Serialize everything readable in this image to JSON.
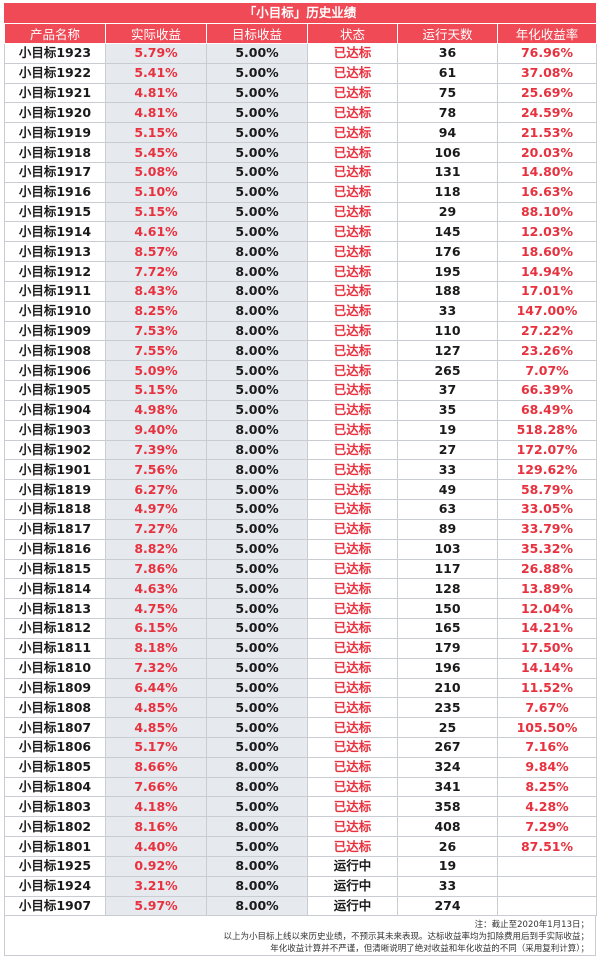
{
  "title": "「小目标」历史业绩",
  "headers": [
    "产品名称",
    "实际收益",
    "目标收益",
    "状态",
    "运行天数",
    "年化收益率"
  ],
  "rows": [
    {
      "name": "小目标1923",
      "actual": "5.79%",
      "target": "5.00%",
      "status": "已达标",
      "days": "36",
      "annual": "76.96%"
    },
    {
      "name": "小目标1922",
      "actual": "5.41%",
      "target": "5.00%",
      "status": "已达标",
      "days": "61",
      "annual": "37.08%"
    },
    {
      "name": "小目标1921",
      "actual": "4.81%",
      "target": "5.00%",
      "status": "已达标",
      "days": "75",
      "annual": "25.69%"
    },
    {
      "name": "小目标1920",
      "actual": "4.81%",
      "target": "5.00%",
      "status": "已达标",
      "days": "78",
      "annual": "24.59%"
    },
    {
      "name": "小目标1919",
      "actual": "5.15%",
      "target": "5.00%",
      "status": "已达标",
      "days": "94",
      "annual": "21.53%"
    },
    {
      "name": "小目标1918",
      "actual": "5.45%",
      "target": "5.00%",
      "status": "已达标",
      "days": "106",
      "annual": "20.03%"
    },
    {
      "name": "小目标1917",
      "actual": "5.08%",
      "target": "5.00%",
      "status": "已达标",
      "days": "131",
      "annual": "14.80%"
    },
    {
      "name": "小目标1916",
      "actual": "5.10%",
      "target": "5.00%",
      "status": "已达标",
      "days": "118",
      "annual": "16.63%"
    },
    {
      "name": "小目标1915",
      "actual": "5.15%",
      "target": "5.00%",
      "status": "已达标",
      "days": "29",
      "annual": "88.10%"
    },
    {
      "name": "小目标1914",
      "actual": "4.61%",
      "target": "5.00%",
      "status": "已达标",
      "days": "145",
      "annual": "12.03%"
    },
    {
      "name": "小目标1913",
      "actual": "8.57%",
      "target": "8.00%",
      "status": "已达标",
      "days": "176",
      "annual": "18.60%"
    },
    {
      "name": "小目标1912",
      "actual": "7.72%",
      "target": "8.00%",
      "status": "已达标",
      "days": "195",
      "annual": "14.94%"
    },
    {
      "name": "小目标1911",
      "actual": "8.43%",
      "target": "8.00%",
      "status": "已达标",
      "days": "188",
      "annual": "17.01%"
    },
    {
      "name": "小目标1910",
      "actual": "8.25%",
      "target": "8.00%",
      "status": "已达标",
      "days": "33",
      "annual": "147.00%"
    },
    {
      "name": "小目标1909",
      "actual": "7.53%",
      "target": "8.00%",
      "status": "已达标",
      "days": "110",
      "annual": "27.22%"
    },
    {
      "name": "小目标1908",
      "actual": "7.55%",
      "target": "8.00%",
      "status": "已达标",
      "days": "127",
      "annual": "23.26%"
    },
    {
      "name": "小目标1906",
      "actual": "5.09%",
      "target": "5.00%",
      "status": "已达标",
      "days": "265",
      "annual": "7.07%"
    },
    {
      "name": "小目标1905",
      "actual": "5.15%",
      "target": "5.00%",
      "status": "已达标",
      "days": "37",
      "annual": "66.39%"
    },
    {
      "name": "小目标1904",
      "actual": "4.98%",
      "target": "5.00%",
      "status": "已达标",
      "days": "35",
      "annual": "68.49%"
    },
    {
      "name": "小目标1903",
      "actual": "9.40%",
      "target": "8.00%",
      "status": "已达标",
      "days": "19",
      "annual": "518.28%"
    },
    {
      "name": "小目标1902",
      "actual": "7.39%",
      "target": "8.00%",
      "status": "已达标",
      "days": "27",
      "annual": "172.07%"
    },
    {
      "name": "小目标1901",
      "actual": "7.56%",
      "target": "8.00%",
      "status": "已达标",
      "days": "33",
      "annual": "129.62%"
    },
    {
      "name": "小目标1819",
      "actual": "6.27%",
      "target": "5.00%",
      "status": "已达标",
      "days": "49",
      "annual": "58.79%"
    },
    {
      "name": "小目标1818",
      "actual": "4.97%",
      "target": "5.00%",
      "status": "已达标",
      "days": "63",
      "annual": "33.05%"
    },
    {
      "name": "小目标1817",
      "actual": "7.27%",
      "target": "5.00%",
      "status": "已达标",
      "days": "89",
      "annual": "33.79%"
    },
    {
      "name": "小目标1816",
      "actual": "8.82%",
      "target": "5.00%",
      "status": "已达标",
      "days": "103",
      "annual": "35.32%"
    },
    {
      "name": "小目标1815",
      "actual": "7.86%",
      "target": "5.00%",
      "status": "已达标",
      "days": "117",
      "annual": "26.88%"
    },
    {
      "name": "小目标1814",
      "actual": "4.63%",
      "target": "5.00%",
      "status": "已达标",
      "days": "128",
      "annual": "13.89%"
    },
    {
      "name": "小目标1813",
      "actual": "4.75%",
      "target": "5.00%",
      "status": "已达标",
      "days": "150",
      "annual": "12.04%"
    },
    {
      "name": "小目标1812",
      "actual": "6.15%",
      "target": "5.00%",
      "status": "已达标",
      "days": "165",
      "annual": "14.21%"
    },
    {
      "name": "小目标1811",
      "actual": "8.18%",
      "target": "5.00%",
      "status": "已达标",
      "days": "179",
      "annual": "17.50%"
    },
    {
      "name": "小目标1810",
      "actual": "7.32%",
      "target": "5.00%",
      "status": "已达标",
      "days": "196",
      "annual": "14.14%"
    },
    {
      "name": "小目标1809",
      "actual": "6.44%",
      "target": "5.00%",
      "status": "已达标",
      "days": "210",
      "annual": "11.52%"
    },
    {
      "name": "小目标1808",
      "actual": "4.85%",
      "target": "5.00%",
      "status": "已达标",
      "days": "235",
      "annual": "7.67%"
    },
    {
      "name": "小目标1807",
      "actual": "4.85%",
      "target": "5.00%",
      "status": "已达标",
      "days": "25",
      "annual": "105.50%"
    },
    {
      "name": "小目标1806",
      "actual": "5.17%",
      "target": "5.00%",
      "status": "已达标",
      "days": "267",
      "annual": "7.16%"
    },
    {
      "name": "小目标1805",
      "actual": "8.66%",
      "target": "8.00%",
      "status": "已达标",
      "days": "324",
      "annual": "9.84%"
    },
    {
      "name": "小目标1804",
      "actual": "7.66%",
      "target": "8.00%",
      "status": "已达标",
      "days": "341",
      "annual": "8.25%"
    },
    {
      "name": "小目标1803",
      "actual": "4.18%",
      "target": "5.00%",
      "status": "已达标",
      "days": "358",
      "annual": "4.28%"
    },
    {
      "name": "小目标1802",
      "actual": "8.16%",
      "target": "8.00%",
      "status": "已达标",
      "days": "408",
      "annual": "7.29%"
    },
    {
      "name": "小目标1801",
      "actual": "4.40%",
      "target": "5.00%",
      "status": "已达标",
      "days": "26",
      "annual": "87.51%"
    },
    {
      "name": "小目标1925",
      "actual": "0.92%",
      "target": "8.00%",
      "status": "运行中",
      "days": "19",
      "annual": ""
    },
    {
      "name": "小目标1924",
      "actual": "3.21%",
      "target": "8.00%",
      "status": "运行中",
      "days": "33",
      "annual": ""
    },
    {
      "name": "小目标1907",
      "actual": "5.97%",
      "target": "8.00%",
      "status": "运行中",
      "days": "274",
      "annual": ""
    }
  ],
  "notes": [
    "注：截止至2020年1月13日；",
    "以上为小目标上线以来历史业绩，不预示其未来表现。达标收益率均为扣除费用后到手实际收益；",
    "年化收益计算并不严谨，但清晰说明了绝对收益和年化收益的不同（采用复利计算）；"
  ],
  "colors": {
    "header_bg": "#ef4a55",
    "accent_red": "#e8313e",
    "shade": "#e6e9ee",
    "border": "#c9ccd0"
  }
}
